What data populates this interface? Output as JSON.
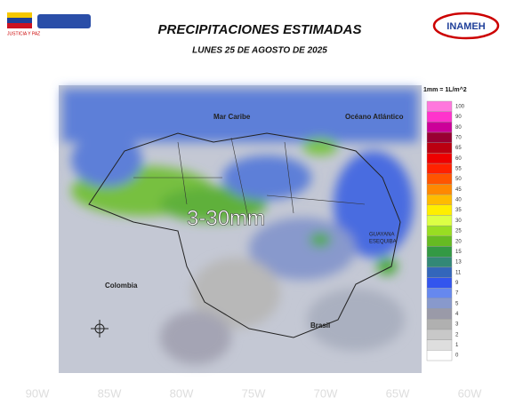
{
  "header": {
    "title": "PRECIPITACIONES ESTIMADAS",
    "subtitle": "LUNES 25 DE AGOSTO DE 2025",
    "logo_left": "JUSTICIA Y PAZ",
    "logo_right": "INAMEH"
  },
  "map": {
    "labels": {
      "sea": "Mar Caribe",
      "ocean": "Océano Atlántico",
      "colombia": "Colombia",
      "brasil": "Brasil",
      "guayana": "GUAYANA",
      "esequiba": "ESEQUIBA"
    },
    "annotation": "3-30mm",
    "longitudes": [
      "90W",
      "85W",
      "80W",
      "75W",
      "70W",
      "65W",
      "60W"
    ]
  },
  "legend": {
    "title": "1mm = 1L/m^2",
    "items": [
      {
        "value": 100,
        "color": "#ff77dd"
      },
      {
        "value": 90,
        "color": "#ff33cc"
      },
      {
        "value": 80,
        "color": "#cc0099"
      },
      {
        "value": 70,
        "color": "#990033"
      },
      {
        "value": 65,
        "color": "#bb0011"
      },
      {
        "value": 60,
        "color": "#ee0000"
      },
      {
        "value": 55,
        "color": "#ff2200"
      },
      {
        "value": 50,
        "color": "#ff5500"
      },
      {
        "value": 45,
        "color": "#ff8800"
      },
      {
        "value": 40,
        "color": "#ffbb00"
      },
      {
        "value": 35,
        "color": "#ffee00"
      },
      {
        "value": 30,
        "color": "#ddff44"
      },
      {
        "value": 25,
        "color": "#99dd22"
      },
      {
        "value": 20,
        "color": "#66bb22"
      },
      {
        "value": 15,
        "color": "#339944"
      },
      {
        "value": 13,
        "color": "#338877"
      },
      {
        "value": 11,
        "color": "#3366bb"
      },
      {
        "value": 9,
        "color": "#3355ee"
      },
      {
        "value": 7,
        "color": "#6688ee"
      },
      {
        "value": 5,
        "color": "#8899cc"
      },
      {
        "value": 4,
        "color": "#9a9aa8"
      },
      {
        "value": 3,
        "color": "#b0b0b0"
      },
      {
        "value": 2,
        "color": "#c8c8c8"
      },
      {
        "value": 1,
        "color": "#dedede"
      },
      {
        "value": 0,
        "color": "#ffffff"
      }
    ]
  }
}
